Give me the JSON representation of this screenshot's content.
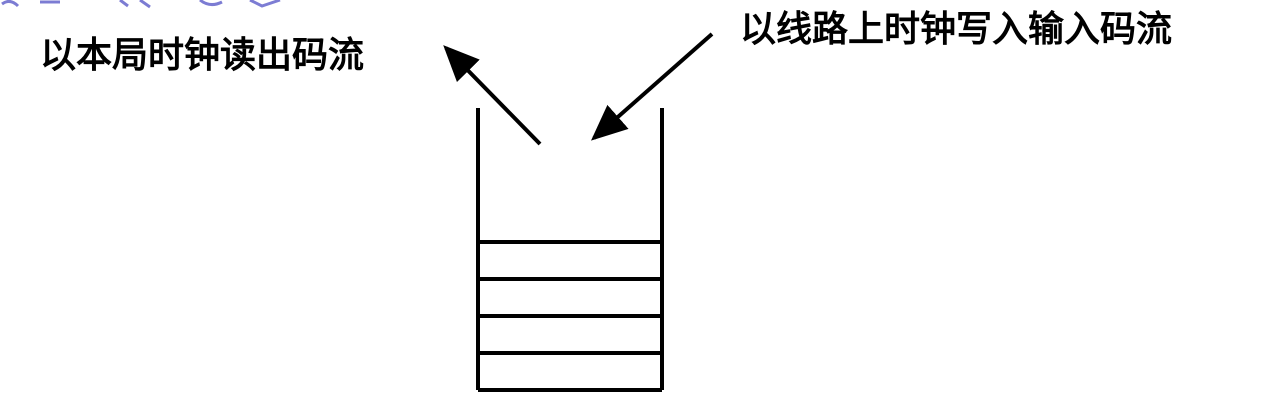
{
  "diagram": {
    "read_label": "以本局时钟读出码流",
    "write_label": "以线路上时钟写入输入码流",
    "buffer_slots": 4
  },
  "colors": {
    "ink": "#000000",
    "cropped_title": "#6666cc",
    "background": "#ffffff"
  },
  "icons": {
    "read_arrow": "arrow-up-left-icon",
    "write_arrow": "arrow-down-left-icon"
  }
}
